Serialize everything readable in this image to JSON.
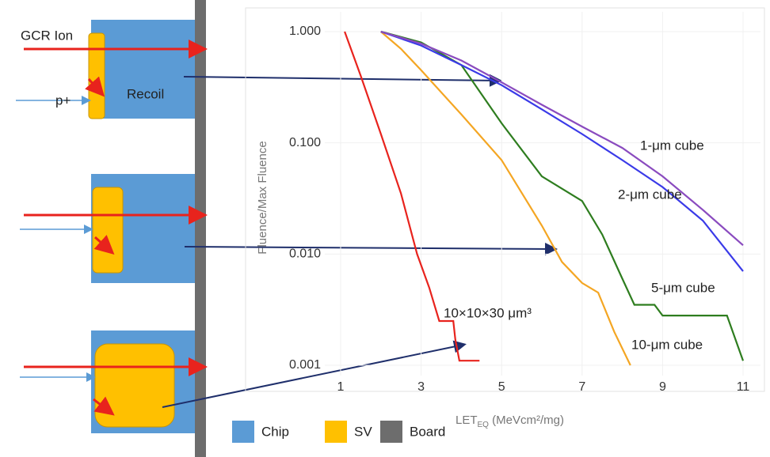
{
  "diagram": {
    "ion_label": "GCR Ion",
    "proton_label": "p+",
    "recoil_label": "Recoil",
    "legend": [
      "Chip",
      "SV",
      "Board"
    ]
  },
  "chart_data": {
    "type": "line",
    "log_y": true,
    "grid": true,
    "y_label": "Fluence/Max Fluence",
    "x_label": [
      "LET",
      "EQ",
      " (MeVcm²/mg)"
    ],
    "xlim": [
      1,
      11
    ],
    "xticks": [
      1,
      3,
      5,
      7,
      9,
      11
    ],
    "ylim": [
      0.001,
      1
    ],
    "yticks": [
      {
        "value": 1,
        "label": "1.000"
      },
      {
        "value": 0.1,
        "label": "0.100"
      },
      {
        "value": 0.01,
        "label": "0.010"
      },
      {
        "value": 0.001,
        "label": "0.001"
      }
    ],
    "series": [
      {
        "name": "10×10×30 μm³",
        "color": "#e8231d",
        "x": [
          1.1,
          1.5,
          2.0,
          2.5,
          2.9,
          3.2,
          3.45,
          3.8,
          3.85,
          3.95,
          4.45
        ],
        "values": [
          1,
          0.4,
          0.12,
          0.035,
          0.01,
          0.005,
          0.0025,
          0.0025,
          0.0017,
          0.0011,
          0.0011
        ]
      },
      {
        "name": "10-μm cube",
        "color": "#f4a623",
        "x": [
          2.0,
          2.5,
          3.0,
          4.0,
          5.0,
          6.0,
          6.5,
          7.0,
          7.4,
          7.8,
          8.2
        ],
        "values": [
          1,
          0.7,
          0.45,
          0.18,
          0.07,
          0.018,
          0.0085,
          0.0055,
          0.0045,
          0.002,
          0.001
        ]
      },
      {
        "name": "5-μm cube",
        "color": "#2e7d1f",
        "x": [
          2.0,
          3.0,
          4.0,
          5.0,
          6.0,
          7.0,
          7.5,
          8.0,
          8.3,
          8.8,
          9.0,
          10.6,
          11
        ],
        "values": [
          1,
          0.8,
          0.5,
          0.15,
          0.05,
          0.03,
          0.015,
          0.006,
          0.0035,
          0.0035,
          0.0028,
          0.0028,
          0.0011
        ]
      },
      {
        "name": "2-μm cube",
        "color": "#3a3ae8",
        "x": [
          2,
          3,
          4,
          5,
          6,
          7,
          8,
          9,
          10,
          11
        ],
        "values": [
          1,
          0.75,
          0.5,
          0.33,
          0.2,
          0.12,
          0.07,
          0.04,
          0.02,
          0.007
        ]
      },
      {
        "name": "1-μm cube",
        "color": "#8a4bbf",
        "x": [
          2,
          3,
          4,
          5,
          6,
          7,
          8,
          9,
          10,
          11
        ],
        "values": [
          1,
          0.78,
          0.55,
          0.35,
          0.22,
          0.14,
          0.09,
          0.05,
          0.025,
          0.012
        ]
      }
    ]
  }
}
